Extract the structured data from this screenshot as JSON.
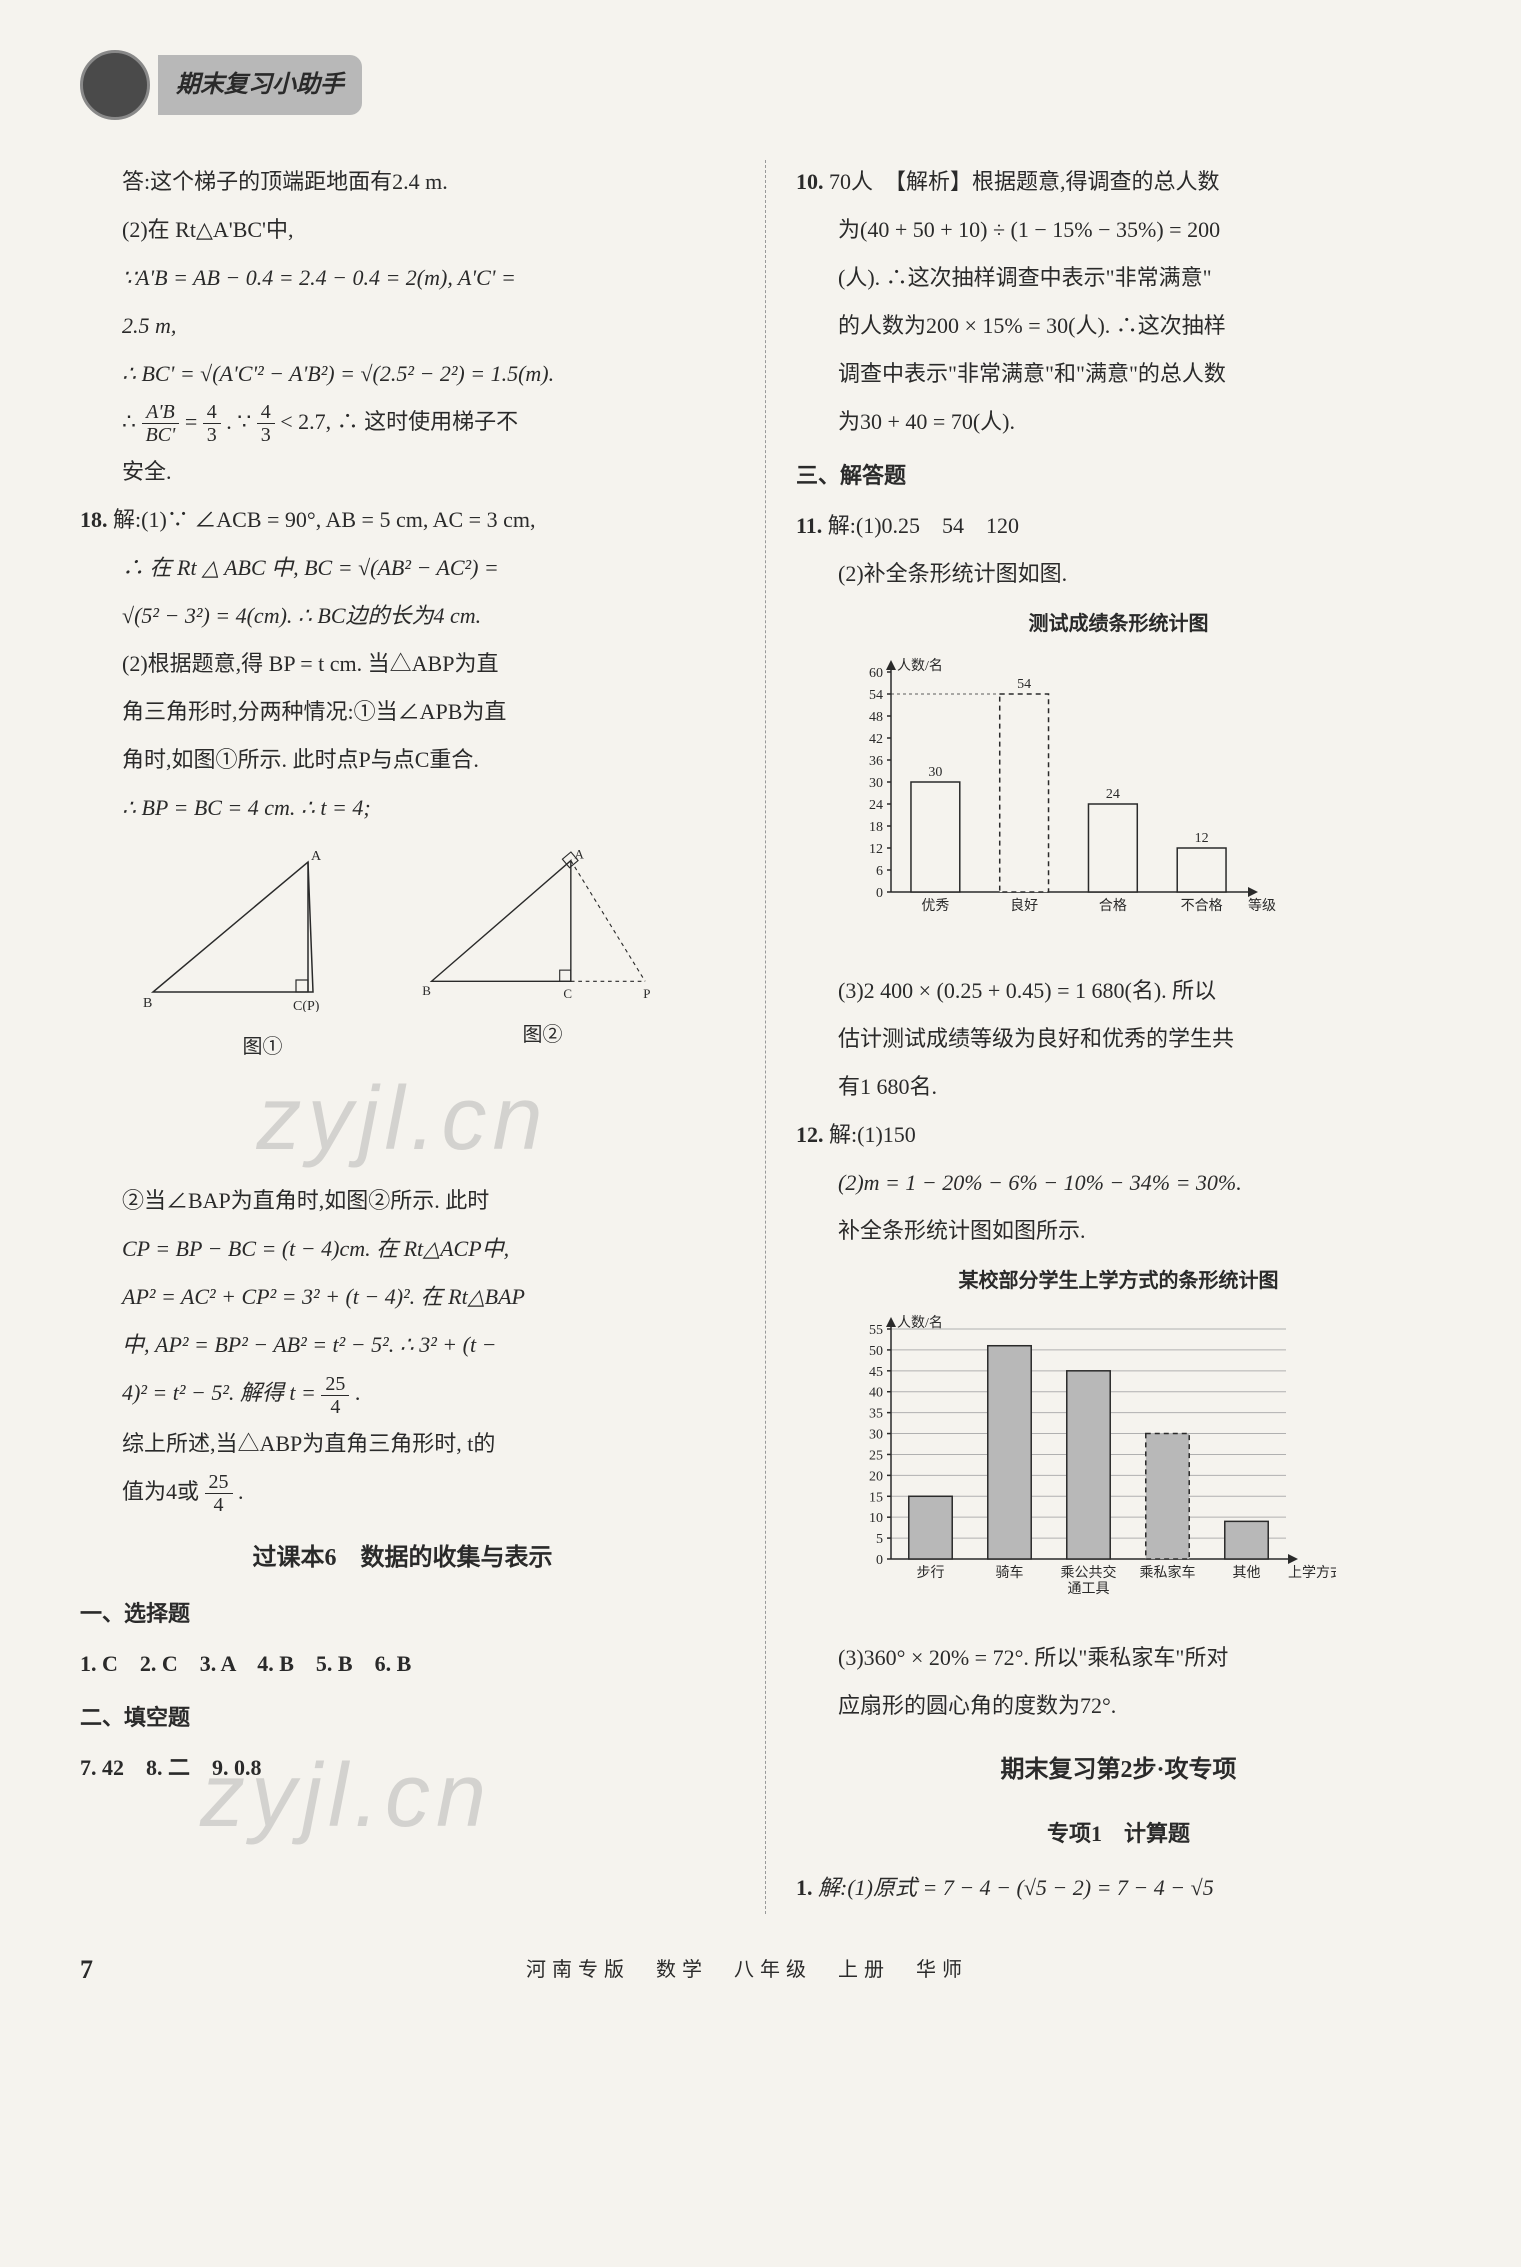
{
  "header": {
    "title": "期末复习小助手"
  },
  "left": {
    "p1": "答:这个梯子的顶端距地面有2.4 m.",
    "p2": "(2)在 Rt△A'BC'中,",
    "p3": "∵A'B = AB − 0.4 = 2.4 − 0.4 = 2(m), A'C' =",
    "p4": "2.5 m,",
    "p5": "∴ BC' = √(A'C'² − A'B²) = √(2.5² − 2²) = 1.5(m).",
    "p6_pre": "∴ ",
    "p6_frac_n": "A'B",
    "p6_frac_d": "BC'",
    "p6_mid": " = ",
    "p6_frac2_n": "4",
    "p6_frac2_d": "3",
    "p6_mid2": ". ∵ ",
    "p6_frac3_n": "4",
    "p6_frac3_d": "3",
    "p6_tail": " < 2.7, ∴ 这时使用梯子不",
    "p7": "安全.",
    "q18": "18.",
    "q18_1": "解:(1)∵ ∠ACB = 90°, AB = 5 cm, AC = 3 cm,",
    "q18_2": "∴ 在 Rt △ ABC 中, BC = √(AB² − AC²) =",
    "q18_3": "√(5² − 3²) = 4(cm). ∴ BC边的长为4 cm.",
    "q18_4": "(2)根据题意,得 BP = t cm. 当△ABP为直",
    "q18_5": "角三角形时,分两种情况:①当∠APB为直",
    "q18_6": "角时,如图①所示. 此时点P与点C重合.",
    "q18_7": "∴ BP = BC = 4 cm. ∴ t = 4;",
    "fig1_label": "图①",
    "fig2_label": "图②",
    "fig_labels": {
      "A": "A",
      "B": "B",
      "C": "C",
      "P": "P",
      "CP": "C(P)"
    },
    "watermark": "zyjl.cn",
    "q18_8": "②当∠BAP为直角时,如图②所示. 此时",
    "q18_9": "CP = BP − BC = (t − 4)cm. 在 Rt△ACP中,",
    "q18_10": "AP² = AC² + CP² = 3² + (t − 4)². 在 Rt△BAP",
    "q18_11": "中, AP² = BP² − AB² = t² − 5². ∴ 3² + (t −",
    "q18_12_pre": "4)² = t² − 5². 解得 t = ",
    "q18_12_n": "25",
    "q18_12_d": "4",
    "q18_12_tail": ".",
    "q18_13": "综上所述,当△ABP为直角三角形时, t的",
    "q18_14_pre": "值为4或",
    "q18_14_n": "25",
    "q18_14_d": "4",
    "q18_14_tail": ".",
    "section2": "过课本6　数据的收集与表示",
    "sxt": "一、选择题",
    "mc": "1. C　2. C　3. A　4. B　5. B　6. B",
    "tkt": "二、填空题",
    "fills": "7. 42　8. 二　9. 0.8"
  },
  "right": {
    "q10": "10.",
    "q10_1": "70人　【解析】根据题意,得调查的总人数",
    "q10_2": "为(40 + 50 + 10) ÷ (1 − 15% − 35%) = 200",
    "q10_3": "(人). ∴这次抽样调查中表示\"非常满意\"",
    "q10_4": "的人数为200 × 15% = 30(人). ∴这次抽样",
    "q10_5": "调查中表示\"非常满意\"和\"满意\"的总人数",
    "q10_6": "为30 + 40 = 70(人).",
    "jdt": "三、解答题",
    "q11": "11.",
    "q11_1": "解:(1)0.25　54　120",
    "q11_2": "(2)补全条形统计图如图.",
    "chart1": {
      "title": "测试成绩条形统计图",
      "ylabel": "人数/名",
      "xlabel": "等级",
      "categories": [
        "优秀",
        "良好",
        "合格",
        "不合格"
      ],
      "values": [
        30,
        54,
        24,
        12
      ],
      "ylim": [
        0,
        60
      ],
      "ytick_step": 6,
      "bar_fill": "#f5f3ee",
      "bar_stroke": "#2a2a2a",
      "dashed_bar_index": 1
    },
    "q11_3": "(3)2 400 × (0.25 + 0.45) = 1 680(名). 所以",
    "q11_4": "估计测试成绩等级为良好和优秀的学生共",
    "q11_5": "有1 680名.",
    "q12": "12.",
    "q12_1": "解:(1)150",
    "q12_2": "(2)m = 1 − 20% − 6% − 10% − 34% = 30%.",
    "q12_3": "补全条形统计图如图所示.",
    "chart2": {
      "title": "某校部分学生上学方式的条形统计图",
      "ylabel": "人数/名",
      "xlabel": "上学方式",
      "categories": [
        "步行",
        "骑车",
        "乘公共交通工具",
        "乘私家车",
        "其他"
      ],
      "values": [
        15,
        51,
        45,
        30,
        9
      ],
      "ylim": [
        0,
        55
      ],
      "ytick_step": 5,
      "bar_fill": "#b8b8b8",
      "bar_stroke": "#2a2a2a",
      "dashed_bar_index": 3
    },
    "q12_4": "(3)360° × 20% = 72°. 所以\"乘私家车\"所对",
    "q12_5": "应扇形的圆心角的度数为72°.",
    "section3": "期末复习第2步·攻专项",
    "section3_sub": "专项1　计算题",
    "q1": "1.",
    "q1_1": "解:(1)原式 = 7 − 4 − (√5 − 2) = 7 − 4 − √5"
  },
  "footer": {
    "page": "7",
    "center": "河南专版　数学　八年级　上册　华师"
  }
}
